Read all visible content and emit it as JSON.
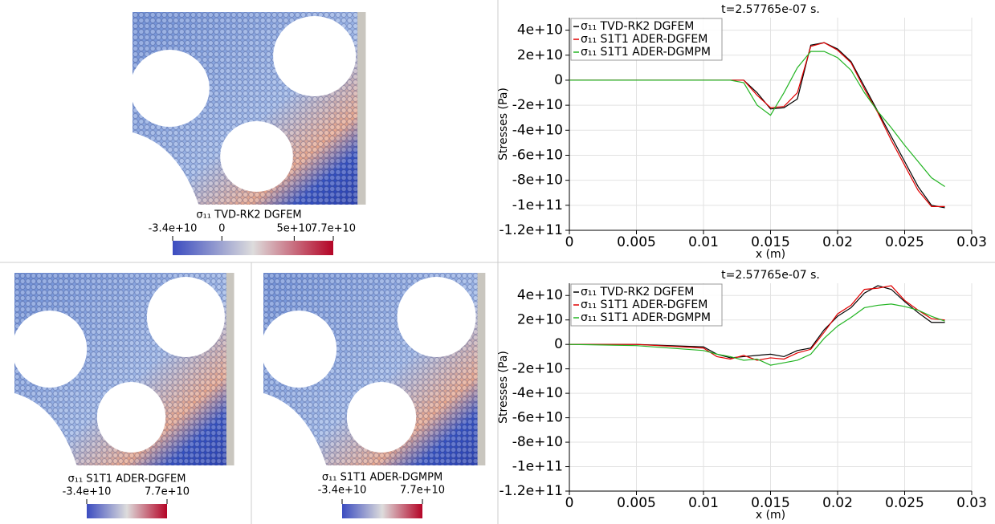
{
  "chart_data": [
    {
      "type": "line",
      "title": "t=2.57765e-07 s.",
      "x_label": "x (m)",
      "y_label": "Stresses (Pa)",
      "x": [
        0,
        0.005,
        0.01,
        0.011,
        0.012,
        0.013,
        0.014,
        0.015,
        0.016,
        0.017,
        0.018,
        0.019,
        0.02,
        0.021,
        0.022,
        0.023,
        0.024,
        0.025,
        0.026,
        0.027,
        0.028
      ],
      "series": [
        {
          "name": "σ₁₁ TVD-RK2 DGFEM",
          "color": "#000000",
          "values": [
            0,
            0,
            0,
            0,
            0,
            0,
            -10000000000.0,
            -23000000000.0,
            -22000000000.0,
            -15000000000.0,
            28000000000.0,
            30000000000.0,
            25000000000.0,
            15000000000.0,
            -5000000000.0,
            -25000000000.0,
            -45000000000.0,
            -65000000000.0,
            -85000000000.0,
            -100000000000.0,
            -102000000000.0
          ]
        },
        {
          "name": "σ₁₁ S1T1 ADER-DGFEM",
          "color": "#e00000",
          "values": [
            0,
            0,
            0,
            0,
            0,
            0,
            -12000000000.0,
            -22000000000.0,
            -21000000000.0,
            -10000000000.0,
            27000000000.0,
            30000000000.0,
            24000000000.0,
            14000000000.0,
            -7000000000.0,
            -26000000000.0,
            -48000000000.0,
            -68000000000.0,
            -88000000000.0,
            -101000000000.0,
            -101000000000.0
          ]
        },
        {
          "name": "σ₁₁ S1T1 ADER-DGMPM",
          "color": "#22b422",
          "values": [
            0,
            0,
            0,
            0,
            0,
            -2000000000.0,
            -20000000000.0,
            -28000000000.0,
            -10000000000.0,
            10000000000.0,
            23000000000.0,
            23000000000.0,
            18000000000.0,
            8000000000.0,
            -10000000000.0,
            -25000000000.0,
            -38000000000.0,
            -52000000000.0,
            -65000000000.0,
            -78000000000.0,
            -85000000000.0
          ]
        }
      ],
      "xlim": [
        0,
        0.03
      ],
      "xticks": [
        0,
        0.005,
        0.01,
        0.015,
        0.02,
        0.025,
        0.03
      ],
      "ylim": [
        -120000000000.0,
        50000000000.0
      ],
      "yticks": [
        {
          "value": -120000000000.0,
          "label": "-1.2e+11"
        },
        {
          "value": -100000000000.0,
          "label": "-1e+11"
        },
        {
          "value": -80000000000.0,
          "label": "-8e+10"
        },
        {
          "value": -60000000000.0,
          "label": "-6e+10"
        },
        {
          "value": -40000000000.0,
          "label": "-4e+10"
        },
        {
          "value": -20000000000.0,
          "label": "-2e+10"
        },
        0,
        {
          "value": 20000000000.0,
          "label": "2e+10"
        },
        {
          "value": 40000000000.0,
          "label": "4e+10"
        }
      ],
      "grid": true,
      "legend": "upper-left"
    },
    {
      "type": "line",
      "title": "t=2.57765e-07 s.",
      "x_label": "x (m)",
      "y_label": "Stresses (Pa)",
      "x": [
        0,
        0.005,
        0.01,
        0.011,
        0.012,
        0.013,
        0.014,
        0.015,
        0.016,
        0.017,
        0.018,
        0.019,
        0.02,
        0.021,
        0.022,
        0.023,
        0.024,
        0.025,
        0.026,
        0.027,
        0.028
      ],
      "series": [
        {
          "name": "σ₁₁ TVD-RK2 DGFEM",
          "color": "#000000",
          "values": [
            0,
            0,
            -2000000000.0,
            -8000000000.0,
            -11000000000.0,
            -10000000000.0,
            -9000000000.0,
            -8000000000.0,
            -10000000000.0,
            -5000000000.0,
            -3000000000.0,
            12000000000.0,
            23000000000.0,
            30000000000.0,
            42000000000.0,
            48000000000.0,
            45000000000.0,
            35000000000.0,
            26000000000.0,
            18000000000.0,
            18000000000.0
          ]
        },
        {
          "name": "σ₁₁ S1T1 ADER-DGFEM",
          "color": "#e00000",
          "values": [
            0,
            0,
            -3000000000.0,
            -10000000000.0,
            -12000000000.0,
            -9000000000.0,
            -13000000000.0,
            -11000000000.0,
            -12000000000.0,
            -7000000000.0,
            -4000000000.0,
            10000000000.0,
            25000000000.0,
            32000000000.0,
            45000000000.0,
            46000000000.0,
            48000000000.0,
            36000000000.0,
            28000000000.0,
            21000000000.0,
            20000000000.0
          ]
        },
        {
          "name": "σ₁₁ S1T1 ADER-DGMPM",
          "color": "#22b422",
          "values": [
            0,
            -1000000000.0,
            -5000000000.0,
            -8000000000.0,
            -10000000000.0,
            -13000000000.0,
            -12000000000.0,
            -17000000000.0,
            -15000000000.0,
            -13000000000.0,
            -8000000000.0,
            5000000000.0,
            15000000000.0,
            22000000000.0,
            30000000000.0,
            32000000000.0,
            33000000000.0,
            31000000000.0,
            28000000000.0,
            23000000000.0,
            19000000000.0
          ]
        }
      ],
      "xlim": [
        0,
        0.03
      ],
      "xticks": [
        0,
        0.005,
        0.01,
        0.015,
        0.02,
        0.025,
        0.03
      ],
      "ylim": [
        -120000000000.0,
        50000000000.0
      ],
      "yticks": [
        {
          "value": -120000000000.0,
          "label": "-1.2e+11"
        },
        {
          "value": -100000000000.0,
          "label": "-1e+11"
        },
        {
          "value": -80000000000.0,
          "label": "-8e+10"
        },
        {
          "value": -60000000000.0,
          "label": "-6e+10"
        },
        {
          "value": -40000000000.0,
          "label": "-4e+10"
        },
        {
          "value": -20000000000.0,
          "label": "-2e+10"
        },
        0,
        {
          "value": 20000000000.0,
          "label": "2e+10"
        },
        {
          "value": 40000000000.0,
          "label": "4e+10"
        }
      ],
      "grid": true,
      "legend": "upper-left"
    }
  ],
  "renders": [
    {
      "label": "σ₁₁ TVD-RK2 DGFEM",
      "colorbar": {
        "range": [
          -34000000000.0,
          77000000000.0
        ],
        "ticks": [
          {
            "value": -34000000000.0,
            "label": "-3.4e+10"
          },
          0,
          {
            "value": 50000000000.0,
            "label": "5e+10"
          },
          {
            "value": 77000000000.0,
            "label": "7.7e+10"
          }
        ]
      }
    },
    {
      "label": "σ₁₁ S1T1 ADER-DGFEM",
      "colorbar": {
        "range": [
          -34000000000.0,
          77000000000.0
        ],
        "ticks": [
          {
            "value": -34000000000.0,
            "label": "-3.4e+10"
          },
          {
            "value": 77000000000.0,
            "label": "7.7e+10"
          }
        ]
      }
    },
    {
      "label": "σ₁₁ S1T1 ADER-DGMPM",
      "colorbar": {
        "range": [
          -34000000000.0,
          77000000000.0
        ],
        "ticks": [
          {
            "value": -34000000000.0,
            "label": "-3.4e+10"
          },
          {
            "value": 77000000000.0,
            "label": "7.7e+10"
          }
        ]
      }
    }
  ]
}
